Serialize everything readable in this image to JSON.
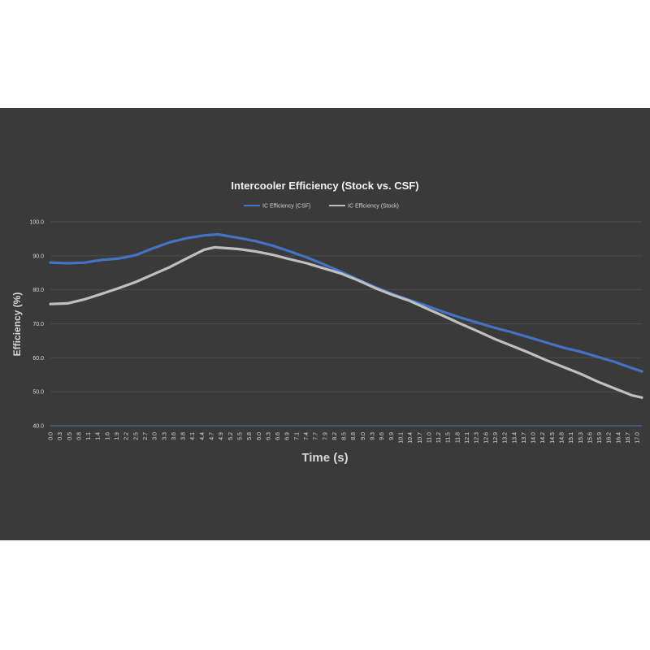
{
  "chart_data": {
    "type": "line",
    "title": "Intercooler Efficiency (Stock vs. CSF)",
    "xlabel": "Time (s)",
    "ylabel": "Efficiency (%)",
    "ylim": [
      40,
      100
    ],
    "yticks": [
      "100.0",
      "90.0",
      "80.0",
      "70.0",
      "60.0",
      "50.0",
      "40.0"
    ],
    "xlim": [
      0,
      17.3
    ],
    "xticks": [
      "0.0",
      "0.3",
      "0.5",
      "0.8",
      "1.1",
      "1.4",
      "1.6",
      "1.9",
      "2.2",
      "2.5",
      "2.7",
      "3.0",
      "3.3",
      "3.6",
      "3.8",
      "4.1",
      "4.4",
      "4.7",
      "4.9",
      "5.2",
      "5.5",
      "5.8",
      "6.0",
      "6.3",
      "6.6",
      "6.9",
      "7.1",
      "7.4",
      "7.7",
      "7.9",
      "8.2",
      "8.5",
      "8.8",
      "9.0",
      "9.3",
      "9.6",
      "9.9",
      "10.1",
      "10.4",
      "10.7",
      "11.0",
      "11.2",
      "11.5",
      "11.8",
      "12.1",
      "12.3",
      "12.6",
      "12.9",
      "13.2",
      "13.4",
      "13.7",
      "14.0",
      "14.2",
      "14.5",
      "14.8",
      "15.1",
      "15.3",
      "15.6",
      "15.9",
      "16.2",
      "16.4",
      "16.7",
      "17.0"
    ],
    "grid": true,
    "legend_position": "top",
    "series": [
      {
        "name": "IC Efficiency (CSF)",
        "color": "#4472c4",
        "x": [
          0.0,
          0.5,
          1.0,
          1.5,
          2.0,
          2.5,
          3.0,
          3.5,
          4.0,
          4.5,
          4.9,
          5.5,
          6.0,
          6.5,
          7.0,
          7.5,
          8.0,
          8.5,
          9.0,
          9.5,
          10.0,
          10.5,
          11.0,
          11.5,
          12.0,
          12.5,
          13.0,
          13.5,
          14.0,
          14.5,
          15.0,
          15.5,
          16.0,
          16.5,
          17.0,
          17.3
        ],
        "y": [
          88.0,
          87.8,
          88.0,
          88.8,
          89.2,
          90.2,
          92.2,
          94.0,
          95.2,
          96.0,
          96.3,
          95.3,
          94.3,
          93.0,
          91.3,
          89.5,
          87.5,
          85.3,
          83.0,
          80.8,
          78.8,
          77.0,
          75.3,
          73.5,
          71.8,
          70.3,
          68.8,
          67.5,
          66.0,
          64.5,
          63.0,
          61.8,
          60.3,
          58.8,
          57.0,
          56.0
        ]
      },
      {
        "name": "IC Efficiency (Stock)",
        "color": "#bfbfbf",
        "x": [
          0.0,
          0.5,
          1.0,
          1.5,
          2.0,
          2.5,
          3.0,
          3.5,
          4.0,
          4.5,
          4.8,
          5.5,
          6.0,
          6.5,
          7.0,
          7.5,
          8.0,
          8.5,
          9.0,
          9.5,
          10.0,
          10.5,
          11.0,
          11.5,
          12.0,
          12.5,
          13.0,
          13.5,
          14.0,
          14.5,
          15.0,
          15.5,
          16.0,
          16.5,
          17.0,
          17.3
        ],
        "y": [
          75.8,
          76.0,
          77.2,
          78.8,
          80.5,
          82.3,
          84.5,
          86.7,
          89.3,
          91.8,
          92.5,
          92.0,
          91.3,
          90.3,
          89.0,
          87.8,
          86.3,
          84.8,
          82.8,
          80.5,
          78.5,
          76.8,
          74.5,
          72.3,
          70.0,
          67.8,
          65.5,
          63.5,
          61.5,
          59.3,
          57.3,
          55.3,
          53.0,
          51.0,
          49.0,
          48.3
        ]
      }
    ]
  }
}
